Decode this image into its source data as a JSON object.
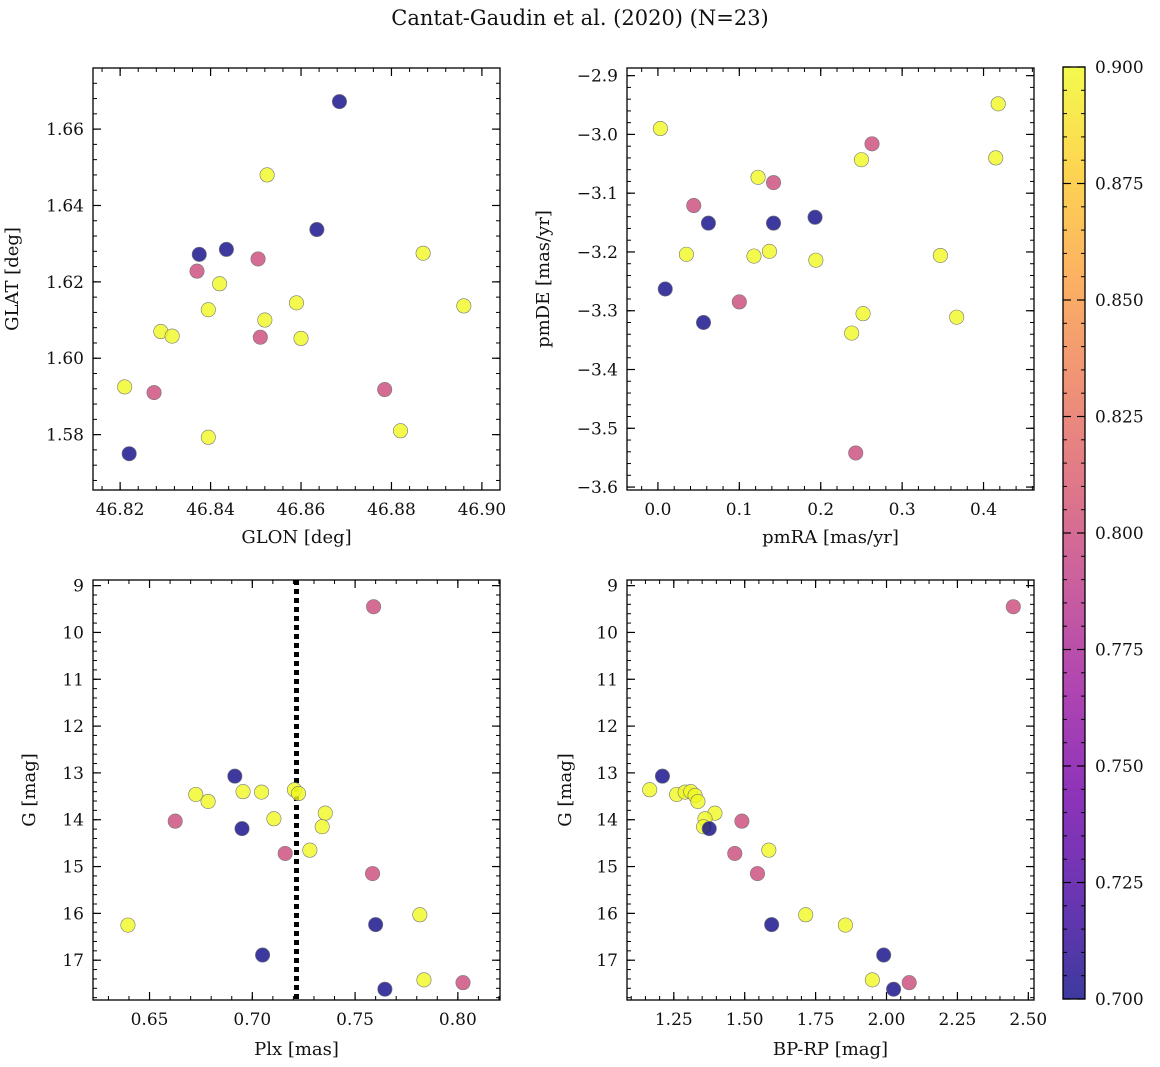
{
  "figure": {
    "title": "Cantat-Gaudin et al. (2020) (N=23)"
  },
  "chart_data": [
    {
      "type": "scatter",
      "xlabel": "GLON [deg]",
      "ylabel": "GLAT [deg]",
      "xlim": [
        46.814,
        46.904
      ],
      "ylim": [
        1.5655,
        1.676
      ],
      "xticks": [
        46.82,
        46.84,
        46.86,
        46.88,
        46.9
      ],
      "xticklabels": [
        "46.82",
        "46.84",
        "46.86",
        "46.88",
        "46.90"
      ],
      "yticks": [
        1.58,
        1.6,
        1.62,
        1.64,
        1.66
      ],
      "yticklabels": [
        "1.58",
        "1.60",
        "1.62",
        "1.64",
        "1.66"
      ],
      "points": [
        {
          "x": 46.8685,
          "y": 1.6672,
          "c": 0.7
        },
        {
          "x": 46.8525,
          "y": 1.648,
          "c": 0.9
        },
        {
          "x": 46.8635,
          "y": 1.6337,
          "c": 0.7
        },
        {
          "x": 46.8435,
          "y": 1.6285,
          "c": 0.7
        },
        {
          "x": 46.8375,
          "y": 1.6272,
          "c": 0.7
        },
        {
          "x": 46.887,
          "y": 1.6275,
          "c": 0.9
        },
        {
          "x": 46.8505,
          "y": 1.626,
          "c": 0.8
        },
        {
          "x": 46.837,
          "y": 1.6228,
          "c": 0.8
        },
        {
          "x": 46.842,
          "y": 1.6195,
          "c": 0.9
        },
        {
          "x": 46.859,
          "y": 1.6145,
          "c": 0.9
        },
        {
          "x": 46.896,
          "y": 1.6137,
          "c": 0.9
        },
        {
          "x": 46.8395,
          "y": 1.6127,
          "c": 0.9
        },
        {
          "x": 46.852,
          "y": 1.61,
          "c": 0.9
        },
        {
          "x": 46.829,
          "y": 1.607,
          "c": 0.9
        },
        {
          "x": 46.8315,
          "y": 1.6058,
          "c": 0.9
        },
        {
          "x": 46.851,
          "y": 1.6055,
          "c": 0.8
        },
        {
          "x": 46.86,
          "y": 1.6052,
          "c": 0.9
        },
        {
          "x": 46.821,
          "y": 1.5925,
          "c": 0.9
        },
        {
          "x": 46.8785,
          "y": 1.5918,
          "c": 0.8
        },
        {
          "x": 46.8275,
          "y": 1.591,
          "c": 0.8
        },
        {
          "x": 46.882,
          "y": 1.581,
          "c": 0.9
        },
        {
          "x": 46.8395,
          "y": 1.5793,
          "c": 0.9
        },
        {
          "x": 46.822,
          "y": 1.575,
          "c": 0.7
        }
      ]
    },
    {
      "type": "scatter",
      "xlabel": "pmRA [mas/yr]",
      "ylabel": "pmDE [mas/yr]",
      "xlim": [
        -0.038,
        0.462
      ],
      "ylim": [
        -3.605,
        -2.887
      ],
      "xticks": [
        0.0,
        0.1,
        0.2,
        0.3,
        0.4
      ],
      "xticklabels": [
        "0.0",
        "0.1",
        "0.2",
        "0.3",
        "0.4"
      ],
      "yticks": [
        -3.6,
        -3.5,
        -3.4,
        -3.3,
        -3.2,
        -3.1,
        -3.0,
        -2.9
      ],
      "yticklabels": [
        "−3.6",
        "−3.5",
        "−3.4",
        "−3.3",
        "−3.2",
        "−3.1",
        "−3.0",
        "−2.9"
      ],
      "points": [
        {
          "x": 0.418,
          "y": -2.948,
          "c": 0.9
        },
        {
          "x": 0.003,
          "y": -2.99,
          "c": 0.9
        },
        {
          "x": 0.263,
          "y": -3.016,
          "c": 0.8
        },
        {
          "x": 0.415,
          "y": -3.04,
          "c": 0.9
        },
        {
          "x": 0.25,
          "y": -3.043,
          "c": 0.9
        },
        {
          "x": 0.123,
          "y": -3.073,
          "c": 0.9
        },
        {
          "x": 0.142,
          "y": -3.082,
          "c": 0.8
        },
        {
          "x": 0.044,
          "y": -3.121,
          "c": 0.8
        },
        {
          "x": 0.193,
          "y": -3.141,
          "c": 0.7
        },
        {
          "x": 0.062,
          "y": -3.151,
          "c": 0.7
        },
        {
          "x": 0.142,
          "y": -3.151,
          "c": 0.7
        },
        {
          "x": 0.137,
          "y": -3.199,
          "c": 0.9
        },
        {
          "x": 0.035,
          "y": -3.204,
          "c": 0.9
        },
        {
          "x": 0.347,
          "y": -3.206,
          "c": 0.9
        },
        {
          "x": 0.118,
          "y": -3.207,
          "c": 0.9
        },
        {
          "x": 0.194,
          "y": -3.214,
          "c": 0.9
        },
        {
          "x": 0.009,
          "y": -3.263,
          "c": 0.7
        },
        {
          "x": 0.1,
          "y": -3.285,
          "c": 0.8
        },
        {
          "x": 0.252,
          "y": -3.305,
          "c": 0.9
        },
        {
          "x": 0.367,
          "y": -3.311,
          "c": 0.9
        },
        {
          "x": 0.056,
          "y": -3.32,
          "c": 0.7
        },
        {
          "x": 0.238,
          "y": -3.338,
          "c": 0.9
        },
        {
          "x": 0.243,
          "y": -3.542,
          "c": 0.8
        }
      ]
    },
    {
      "type": "scatter",
      "xlabel": "Plx [mas]",
      "ylabel": "G [mag]",
      "xlim": [
        0.6225,
        0.8205
      ],
      "ylim": [
        17.85,
        8.88
      ],
      "xticks": [
        0.65,
        0.7,
        0.75,
        0.8
      ],
      "xticklabels": [
        "0.65",
        "0.70",
        "0.75",
        "0.80"
      ],
      "yticks": [
        9,
        10,
        11,
        12,
        13,
        14,
        15,
        16,
        17
      ],
      "yticklabels": [
        "9",
        "10",
        "11",
        "12",
        "13",
        "14",
        "15",
        "16",
        "17"
      ],
      "vline": 0.7215,
      "points": [
        {
          "x": 0.759,
          "y": 9.45,
          "c": 0.8
        },
        {
          "x": 0.6915,
          "y": 13.07,
          "c": 0.7
        },
        {
          "x": 0.7205,
          "y": 13.36,
          "c": 0.9
        },
        {
          "x": 0.7225,
          "y": 13.44,
          "c": 0.9
        },
        {
          "x": 0.6725,
          "y": 13.46,
          "c": 0.9
        },
        {
          "x": 0.6955,
          "y": 13.4,
          "c": 0.9
        },
        {
          "x": 0.7045,
          "y": 13.41,
          "c": 0.9
        },
        {
          "x": 0.6785,
          "y": 13.61,
          "c": 0.9
        },
        {
          "x": 0.7355,
          "y": 13.86,
          "c": 0.9
        },
        {
          "x": 0.7105,
          "y": 13.98,
          "c": 0.9
        },
        {
          "x": 0.6625,
          "y": 14.03,
          "c": 0.8
        },
        {
          "x": 0.734,
          "y": 14.15,
          "c": 0.9
        },
        {
          "x": 0.695,
          "y": 14.19,
          "c": 0.7
        },
        {
          "x": 0.728,
          "y": 14.65,
          "c": 0.9
        },
        {
          "x": 0.716,
          "y": 14.72,
          "c": 0.8
        },
        {
          "x": 0.7585,
          "y": 15.15,
          "c": 0.8
        },
        {
          "x": 0.7815,
          "y": 16.03,
          "c": 0.9
        },
        {
          "x": 0.6395,
          "y": 16.25,
          "c": 0.9
        },
        {
          "x": 0.76,
          "y": 16.24,
          "c": 0.7
        },
        {
          "x": 0.705,
          "y": 16.89,
          "c": 0.7
        },
        {
          "x": 0.7835,
          "y": 17.42,
          "c": 0.9
        },
        {
          "x": 0.8025,
          "y": 17.48,
          "c": 0.8
        },
        {
          "x": 0.7645,
          "y": 17.62,
          "c": 0.7
        }
      ]
    },
    {
      "type": "scatter",
      "xlabel": "BP-RP [mag]",
      "ylabel": "G [mag]",
      "xlim": [
        1.085,
        2.52
      ],
      "ylim": [
        17.85,
        8.88
      ],
      "xticks": [
        1.25,
        1.5,
        1.75,
        2.0,
        2.25,
        2.5
      ],
      "xticklabels": [
        "1.25",
        "1.50",
        "1.75",
        "2.00",
        "2.25",
        "2.50"
      ],
      "yticks": [
        9,
        10,
        11,
        12,
        13,
        14,
        15,
        16,
        17
      ],
      "yticklabels": [
        "9",
        "10",
        "11",
        "12",
        "13",
        "14",
        "15",
        "16",
        "17"
      ],
      "points": [
        {
          "x": 2.447,
          "y": 9.45,
          "c": 0.8
        },
        {
          "x": 1.21,
          "y": 13.07,
          "c": 0.7
        },
        {
          "x": 1.165,
          "y": 13.36,
          "c": 0.9
        },
        {
          "x": 1.26,
          "y": 13.46,
          "c": 0.9
        },
        {
          "x": 1.29,
          "y": 13.41,
          "c": 0.9
        },
        {
          "x": 1.31,
          "y": 13.4,
          "c": 0.9
        },
        {
          "x": 1.325,
          "y": 13.48,
          "c": 0.9
        },
        {
          "x": 1.335,
          "y": 13.61,
          "c": 0.9
        },
        {
          "x": 1.395,
          "y": 13.86,
          "c": 0.9
        },
        {
          "x": 1.36,
          "y": 13.98,
          "c": 0.9
        },
        {
          "x": 1.49,
          "y": 14.03,
          "c": 0.8
        },
        {
          "x": 1.355,
          "y": 14.15,
          "c": 0.9
        },
        {
          "x": 1.375,
          "y": 14.19,
          "c": 0.7
        },
        {
          "x": 1.585,
          "y": 14.65,
          "c": 0.9
        },
        {
          "x": 1.465,
          "y": 14.72,
          "c": 0.8
        },
        {
          "x": 1.545,
          "y": 15.15,
          "c": 0.8
        },
        {
          "x": 1.715,
          "y": 16.03,
          "c": 0.9
        },
        {
          "x": 1.855,
          "y": 16.25,
          "c": 0.9
        },
        {
          "x": 1.595,
          "y": 16.24,
          "c": 0.7
        },
        {
          "x": 1.99,
          "y": 16.89,
          "c": 0.7
        },
        {
          "x": 1.95,
          "y": 17.42,
          "c": 0.9
        },
        {
          "x": 2.08,
          "y": 17.48,
          "c": 0.8
        },
        {
          "x": 2.025,
          "y": 17.62,
          "c": 0.7
        }
      ]
    }
  ],
  "colorbar": {
    "range": [
      0.7,
      0.9
    ],
    "ticks": [
      0.7,
      0.725,
      0.75,
      0.775,
      0.8,
      0.825,
      0.85,
      0.875,
      0.9
    ],
    "ticklabels": [
      "0.700",
      "0.725",
      "0.750",
      "0.775",
      "0.800",
      "0.825",
      "0.850",
      "0.875",
      "0.900"
    ],
    "colormap": "plasma",
    "stops": [
      "#0d0887",
      "#46039f",
      "#7201a8",
      "#9c179e",
      "#bd3786",
      "#d8576b",
      "#ed7953",
      "#fb9f3a",
      "#fdca26",
      "#f0f921"
    ]
  }
}
